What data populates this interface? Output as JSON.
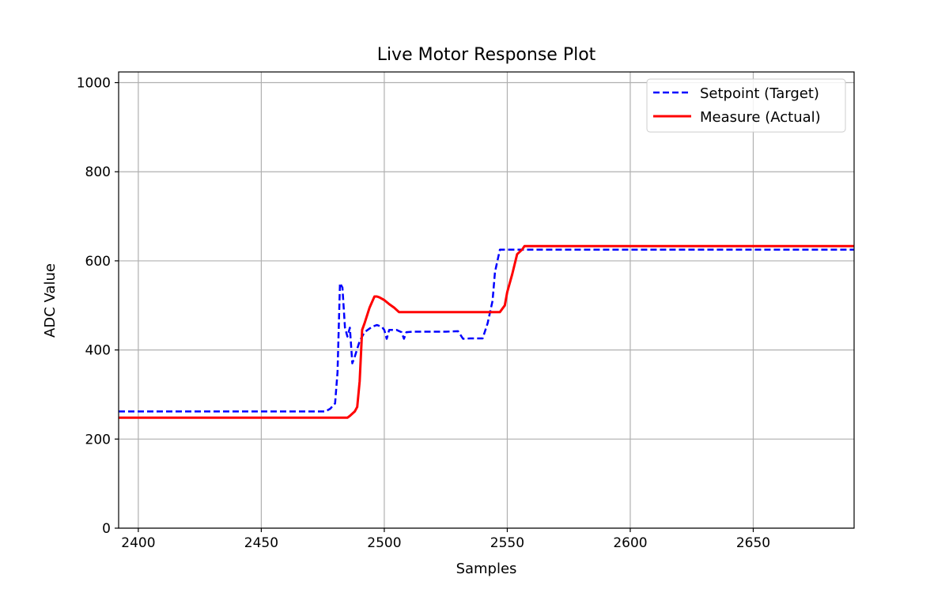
{
  "chart_data": {
    "type": "line",
    "title": "Live Motor Response Plot",
    "xlabel": "Samples",
    "ylabel": "ADC Value",
    "xlim": [
      2392,
      2691
    ],
    "ylim": [
      0,
      1024
    ],
    "xticks": [
      2400,
      2450,
      2500,
      2550,
      2600,
      2650
    ],
    "yticks": [
      0,
      200,
      400,
      600,
      800,
      1000
    ],
    "grid": true,
    "legend_position": "top-right",
    "series": [
      {
        "name": "Setpoint (Target)",
        "color": "#0000ff",
        "style": "dashed",
        "points": [
          [
            2392,
            262
          ],
          [
            2440,
            262
          ],
          [
            2460,
            262
          ],
          [
            2476,
            262
          ],
          [
            2478,
            268
          ],
          [
            2480,
            280
          ],
          [
            2481,
            350
          ],
          [
            2482,
            550
          ],
          [
            2483,
            540
          ],
          [
            2484,
            450
          ],
          [
            2485,
            430
          ],
          [
            2486,
            450
          ],
          [
            2487,
            370
          ],
          [
            2488,
            385
          ],
          [
            2490,
            420
          ],
          [
            2492,
            440
          ],
          [
            2495,
            452
          ],
          [
            2497,
            456
          ],
          [
            2499,
            452
          ],
          [
            2500,
            445
          ],
          [
            2501,
            425
          ],
          [
            2502,
            445
          ],
          [
            2505,
            445
          ],
          [
            2507,
            440
          ],
          [
            2508,
            425
          ],
          [
            2509,
            440
          ],
          [
            2512,
            441
          ],
          [
            2520,
            441
          ],
          [
            2525,
            441
          ],
          [
            2530,
            442
          ],
          [
            2532,
            425
          ],
          [
            2535,
            426
          ],
          [
            2540,
            426
          ],
          [
            2542,
            460
          ],
          [
            2544,
            510
          ],
          [
            2545,
            575
          ],
          [
            2547,
            625
          ],
          [
            2560,
            625
          ],
          [
            2600,
            625
          ],
          [
            2650,
            625
          ],
          [
            2691,
            625
          ]
        ]
      },
      {
        "name": "Measure (Actual)",
        "color": "#ff0000",
        "style": "solid",
        "points": [
          [
            2392,
            248
          ],
          [
            2420,
            248
          ],
          [
            2450,
            248
          ],
          [
            2470,
            248
          ],
          [
            2485,
            248
          ],
          [
            2486,
            252
          ],
          [
            2488,
            262
          ],
          [
            2489,
            272
          ],
          [
            2490,
            330
          ],
          [
            2491,
            445
          ],
          [
            2492,
            460
          ],
          [
            2494,
            495
          ],
          [
            2496,
            520
          ],
          [
            2497,
            520
          ],
          [
            2498,
            518
          ],
          [
            2500,
            512
          ],
          [
            2502,
            503
          ],
          [
            2504,
            495
          ],
          [
            2506,
            485
          ],
          [
            2510,
            485
          ],
          [
            2530,
            485
          ],
          [
            2547,
            485
          ],
          [
            2549,
            500
          ],
          [
            2550,
            530
          ],
          [
            2552,
            570
          ],
          [
            2554,
            615
          ],
          [
            2556,
            625
          ],
          [
            2557,
            633
          ],
          [
            2560,
            633
          ],
          [
            2600,
            633
          ],
          [
            2650,
            633
          ],
          [
            2691,
            633
          ]
        ]
      }
    ]
  }
}
